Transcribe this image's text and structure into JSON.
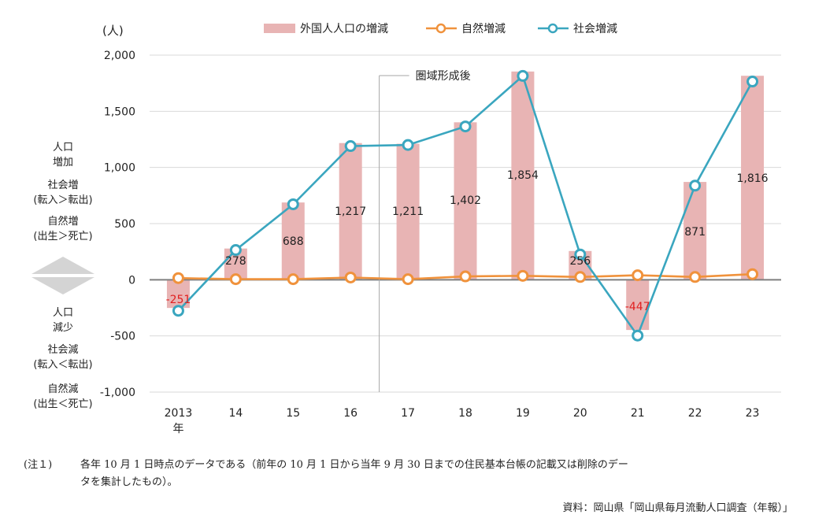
{
  "chart_data": {
    "type": "bar",
    "unit_label": "(人)",
    "categories": [
      "2013",
      "14",
      "15",
      "16",
      "17",
      "18",
      "19",
      "20",
      "21",
      "22",
      "23"
    ],
    "first_category_suffix": "年",
    "ylim": [
      -1000,
      2000
    ],
    "yticks": [
      2000,
      1500,
      1000,
      500,
      0,
      -500,
      -1000
    ],
    "ytick_labels": [
      "2,000",
      "1,500",
      "1,000",
      "500",
      "0",
      "-500",
      "-1,000"
    ],
    "grid": true,
    "legend_position": "top",
    "series": [
      {
        "name": "外国人人口の増減",
        "type": "bar",
        "color": "#e8b4b4",
        "values": [
          -251,
          278,
          688,
          1217,
          1211,
          1402,
          1854,
          256,
          -447,
          871,
          1816
        ],
        "labels": [
          "-251",
          "278",
          "688",
          "1,217",
          "1,211",
          "1,402",
          "1,854",
          "256",
          "-447",
          "871",
          "1,816"
        ]
      },
      {
        "name": "自然増減",
        "type": "line",
        "color": "#f0923c",
        "values": [
          15,
          5,
          5,
          20,
          5,
          30,
          35,
          25,
          40,
          25,
          50
        ]
      },
      {
        "name": "社会増減",
        "type": "line",
        "color": "#3aa6bf",
        "values": [
          -276,
          265,
          672,
          1190,
          1200,
          1365,
          1815,
          225,
          -497,
          838,
          1765
        ]
      }
    ],
    "annotation": "圏域形成後",
    "negative_label_color": "#e02020"
  },
  "side_labels": {
    "increase_title": "人口",
    "increase_sub": "増加",
    "social_increase": "社会増",
    "social_increase_desc": "(転入＞転出)",
    "natural_increase": "自然増",
    "natural_increase_desc": "(出生＞死亡)",
    "decrease_title": "人口",
    "decrease_sub": "減少",
    "social_decrease": "社会減",
    "social_decrease_desc": "(転入＜転出)",
    "natural_decrease": "自然減",
    "natural_decrease_desc": "(出生＜死亡)"
  },
  "note": {
    "label": "(注１)",
    "line1": "各年 10 月 1 日時点のデータである（前年の 10 月 1 日から当年 9 月 30 日までの住民基本台帳の記載又は削除のデー",
    "line2": "タを集計したもの）。"
  },
  "source": "資料：岡山県「岡山県毎月流動人口調査（年報）」"
}
